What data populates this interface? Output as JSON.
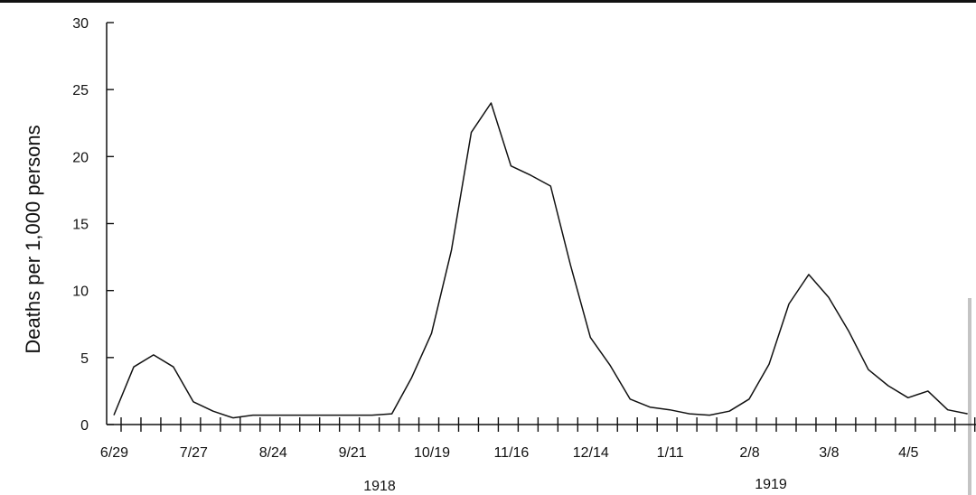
{
  "chart_data": {
    "type": "line",
    "title": "",
    "xlabel": "",
    "ylabel": "Deaths per 1,000 persons",
    "ylim": [
      0,
      30
    ],
    "yticks": [
      0,
      5,
      10,
      15,
      20,
      25,
      30
    ],
    "grid": false,
    "x_tick_labels": [
      "6/29",
      "7/27",
      "8/24",
      "9/21",
      "10/19",
      "11/16",
      "12/14",
      "1/11",
      "2/8",
      "3/8",
      "4/5"
    ],
    "year_labels": [
      "1918",
      "1919"
    ],
    "series": [
      {
        "x": [
          "1918-06-29",
          "1918-07-06",
          "1918-07-13",
          "1918-07-20",
          "1918-07-27",
          "1918-08-03",
          "1918-08-10",
          "1918-08-17",
          "1918-08-24",
          "1918-08-31",
          "1918-09-07",
          "1918-09-14",
          "1918-09-21",
          "1918-09-28",
          "1918-10-05",
          "1918-10-12",
          "1918-10-19",
          "1918-10-26",
          "1918-11-02",
          "1918-11-09",
          "1918-11-16",
          "1918-11-23",
          "1918-11-30",
          "1918-12-07",
          "1918-12-14",
          "1918-12-21",
          "1918-12-28",
          "1919-01-04",
          "1919-01-11",
          "1919-01-18",
          "1919-01-25",
          "1919-02-01",
          "1919-02-08",
          "1919-02-15",
          "1919-02-22",
          "1919-03-01",
          "1919-03-08",
          "1919-03-15",
          "1919-03-22",
          "1919-03-29",
          "1919-04-05",
          "1919-04-12",
          "1919-04-19",
          "1919-04-26"
        ],
        "values": [
          0.7,
          4.3,
          5.2,
          4.3,
          1.7,
          1.0,
          0.5,
          0.7,
          0.7,
          0.7,
          0.7,
          0.7,
          0.7,
          0.7,
          0.8,
          3.5,
          6.8,
          13.0,
          21.8,
          24.0,
          19.3,
          18.6,
          17.8,
          11.9,
          6.5,
          4.4,
          1.9,
          1.3,
          1.1,
          0.8,
          0.7,
          1.0,
          1.9,
          4.5,
          9.0,
          11.2,
          9.5,
          7.0,
          4.1,
          2.9,
          2.0,
          2.5,
          1.1,
          0.8
        ]
      }
    ]
  }
}
